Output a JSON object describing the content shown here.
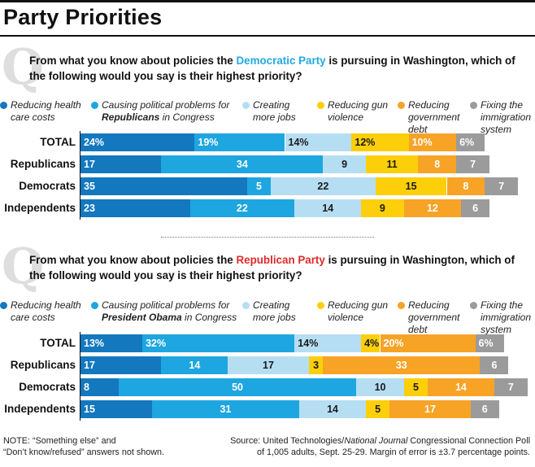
{
  "title": "Party Priorities",
  "note": [
    "NOTE: “Something else” and",
    "“Don’t know/refused” answers not shown."
  ],
  "source": {
    "line1_prefix": "Source: United Technologies/",
    "line1_italic": "National Journal",
    "line1_suffix": " Congressional Connection Poll",
    "line2": "of 1,005 adults, Sept. 25-29. Margin of error is ±3.7 percentage points."
  },
  "colors": {
    "health": "#1378be",
    "political": "#1ea6e0",
    "jobs": "#b6def3",
    "gun": "#fccf0a",
    "debt": "#f7a326",
    "immigration": "#9b9b9b"
  },
  "chart_data": [
    {
      "type": "bar",
      "stacked": true,
      "orientation": "horizontal",
      "question_prefix": "From what you know about policies the ",
      "question_party": "Democratic Party",
      "question_suffix": " is pursuing in Washington, which of the following would you say is their highest priority?",
      "categories": [
        "TOTAL",
        "Republicans",
        "Democrats",
        "Independents"
      ],
      "series": [
        {
          "name": "Reducing health care costs",
          "legend_lines": [
            "Reducing health",
            "care costs"
          ],
          "legend_bold": "",
          "color_key": "health",
          "values": [
            24,
            17,
            35,
            23
          ],
          "labels": [
            "24%",
            "17",
            "35",
            "23"
          ]
        },
        {
          "name": "Causing political problems for Republicans in Congress",
          "legend_lines": [
            "Causing political problems for",
            "Republicans in Congress"
          ],
          "legend_bold": "Republicans",
          "color_key": "political",
          "values": [
            19,
            34,
            5,
            22
          ],
          "labels": [
            "19%",
            "34",
            "5",
            "22"
          ]
        },
        {
          "name": "Creating more jobs",
          "legend_lines": [
            "Creating",
            "more jobs"
          ],
          "legend_bold": "",
          "color_key": "jobs",
          "values": [
            14,
            9,
            22,
            14
          ],
          "labels": [
            "14%",
            "9",
            "22",
            "14"
          ]
        },
        {
          "name": "Reducing gun violence",
          "legend_lines": [
            "Reducing gun",
            "violence"
          ],
          "legend_bold": "",
          "color_key": "gun",
          "values": [
            12,
            11,
            15,
            9
          ],
          "labels": [
            "12%",
            "11",
            "15",
            "9"
          ]
        },
        {
          "name": "Reducing government debt",
          "legend_lines": [
            "Reducing",
            "government",
            "debt"
          ],
          "legend_bold": "",
          "color_key": "debt",
          "values": [
            10,
            8,
            8,
            12
          ],
          "labels": [
            "10%",
            "8",
            "8",
            "12"
          ]
        },
        {
          "name": "Fixing the immigration system",
          "legend_lines": [
            "Fixing the",
            "immigration",
            "system"
          ],
          "legend_bold": "",
          "color_key": "immigration",
          "values": [
            6,
            7,
            7,
            6
          ],
          "labels": [
            "6%",
            "7",
            "7",
            "6"
          ]
        }
      ]
    },
    {
      "type": "bar",
      "stacked": true,
      "orientation": "horizontal",
      "question_prefix": "From what you know about policies the ",
      "question_party": "Republican Party",
      "question_suffix": " is pursuing in Washington, which of the following would you say is their highest priority?",
      "categories": [
        "TOTAL",
        "Republicans",
        "Democrats",
        "Independents"
      ],
      "series": [
        {
          "name": "Reducing health care costs",
          "legend_lines": [
            "Reducing health",
            "care costs"
          ],
          "legend_bold": "",
          "color_key": "health",
          "values": [
            13,
            17,
            8,
            15
          ],
          "labels": [
            "13%",
            "17",
            "8",
            "15"
          ]
        },
        {
          "name": "Causing political problems for President Obama in Congress",
          "legend_lines": [
            "Causing political problems for",
            "President Obama in Congress"
          ],
          "legend_bold": "President Obama",
          "color_key": "political",
          "values": [
            32,
            14,
            50,
            31
          ],
          "labels": [
            "32%",
            "14",
            "50",
            "31"
          ]
        },
        {
          "name": "Creating more jobs",
          "legend_lines": [
            "Creating",
            "more jobs"
          ],
          "legend_bold": "",
          "color_key": "jobs",
          "values": [
            14,
            17,
            10,
            14
          ],
          "labels": [
            "14%",
            "17",
            "10",
            "14"
          ]
        },
        {
          "name": "Reducing gun violence",
          "legend_lines": [
            "Reducing gun",
            "violence"
          ],
          "legend_bold": "",
          "color_key": "gun",
          "values": [
            4,
            3,
            5,
            5
          ],
          "labels": [
            "4%",
            "3",
            "5",
            "5"
          ]
        },
        {
          "name": "Reducing government debt",
          "legend_lines": [
            "Reducing",
            "government",
            "debt"
          ],
          "legend_bold": "",
          "color_key": "debt",
          "values": [
            20,
            33,
            14,
            17
          ],
          "labels": [
            "20%",
            "33",
            "14",
            "17"
          ]
        },
        {
          "name": "Fixing the immigration system",
          "legend_lines": [
            "Fixing the",
            "immigration",
            "system"
          ],
          "legend_bold": "",
          "color_key": "immigration",
          "values": [
            6,
            6,
            7,
            6
          ],
          "labels": [
            "6%",
            "6",
            "7",
            "6"
          ]
        }
      ]
    }
  ]
}
